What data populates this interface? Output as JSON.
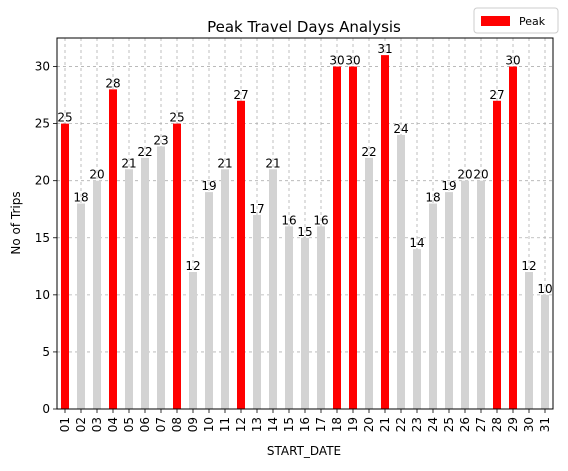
{
  "chart_data": {
    "type": "bar",
    "title": "Peak Travel Days Analysis",
    "xlabel": "START_DATE",
    "ylabel": "No of Trips",
    "categories": [
      "01",
      "02",
      "03",
      "04",
      "05",
      "06",
      "07",
      "08",
      "09",
      "10",
      "11",
      "12",
      "13",
      "14",
      "15",
      "16",
      "17",
      "18",
      "19",
      "20",
      "21",
      "22",
      "23",
      "24",
      "25",
      "26",
      "27",
      "28",
      "29",
      "30",
      "31"
    ],
    "values": [
      25,
      18,
      20,
      28,
      21,
      22,
      23,
      25,
      12,
      19,
      21,
      27,
      17,
      21,
      16,
      15,
      16,
      30,
      30,
      22,
      31,
      24,
      14,
      18,
      19,
      20,
      20,
      27,
      30,
      12,
      10
    ],
    "peak": [
      true,
      false,
      false,
      true,
      false,
      false,
      false,
      true,
      false,
      false,
      false,
      true,
      false,
      false,
      false,
      false,
      false,
      true,
      true,
      false,
      true,
      false,
      false,
      false,
      false,
      false,
      false,
      true,
      true,
      false,
      false
    ],
    "ylim": [
      0,
      32.5
    ],
    "yticks": [
      0,
      5,
      10,
      15,
      20,
      25,
      30
    ],
    "grid": true,
    "legend": {
      "position": "top-right",
      "entries": [
        {
          "name": "Peak",
          "color": "#ff0000"
        }
      ]
    },
    "colors": {
      "peak": "#ff0000",
      "normal": "#d3d3d3"
    }
  }
}
